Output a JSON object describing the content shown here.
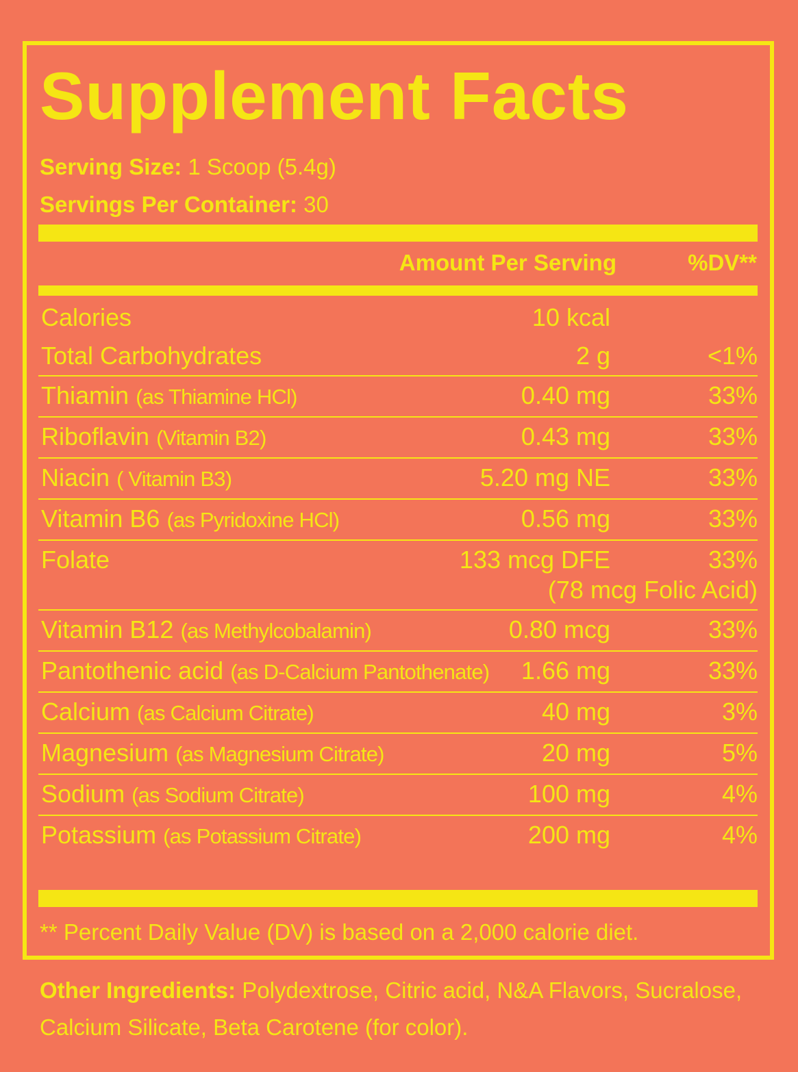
{
  "title": "Supplement Facts",
  "serving_size": {
    "label": "Serving Size:",
    "value": "1 Scoop (5.4g)"
  },
  "servings_per_container": {
    "label": "Servings Per Container:",
    "value": "30"
  },
  "table": {
    "header": {
      "amount": "Amount Per Serving",
      "dv": "%DV**"
    },
    "rows": [
      {
        "name": "Calories",
        "amount": "10 kcal"
      },
      {
        "name": "Total Carbohydrates",
        "amount": "2 g",
        "dv": "<1%"
      },
      {
        "name": "Thiamin",
        "detail": "(as Thiamine HCl)",
        "amount": "0.40 mg",
        "dv": "33%"
      },
      {
        "name": "Riboflavin",
        "detail": "(Vitamin B2)",
        "amount": "0.43 mg",
        "dv": "33%"
      },
      {
        "name": "Niacin",
        "detail": "( Vitamin B3)",
        "amount": "5.20 mg NE",
        "dv": "33%"
      },
      {
        "name": "Vitamin B6",
        "detail": "(as Pyridoxine HCl)",
        "amount": "0.56 mg",
        "dv": "33%"
      },
      {
        "name": "Folate",
        "amount": "133 mcg DFE",
        "amount_note": "(78 mcg Folic Acid)",
        "dv": "33%"
      },
      {
        "name": "Vitamin B12",
        "detail": "(as Methylcobalamin)",
        "amount": "0.80 mcg",
        "dv": "33%"
      },
      {
        "name": "Pantothenic acid",
        "detail": "(as D-Calcium Pantothenate)",
        "amount": "1.66 mg",
        "dv": "33%"
      },
      {
        "name": "Calcium",
        "detail": "(as Calcium Citrate)",
        "amount": "40 mg",
        "dv": "3%"
      },
      {
        "name": "Magnesium",
        "detail": "(as Magnesium Citrate)",
        "amount": "20 mg",
        "dv": "5%"
      },
      {
        "name": "Sodium",
        "detail": "(as Sodium Citrate)",
        "amount": "100 mg",
        "dv": "4%"
      },
      {
        "name": "Potassium",
        "detail": "(as Potassium Citrate)",
        "amount": "200 mg",
        "dv": "4%"
      }
    ]
  },
  "footnote": "** Percent Daily Value (DV) is based on a 2,000 calorie diet.",
  "other_ingredients": {
    "label": "Other Ingredients:",
    "value": "Polydextrose, Citric acid, N&A Flavors, Sucralose, Calcium Silicate, Beta Carotene (for color)."
  }
}
